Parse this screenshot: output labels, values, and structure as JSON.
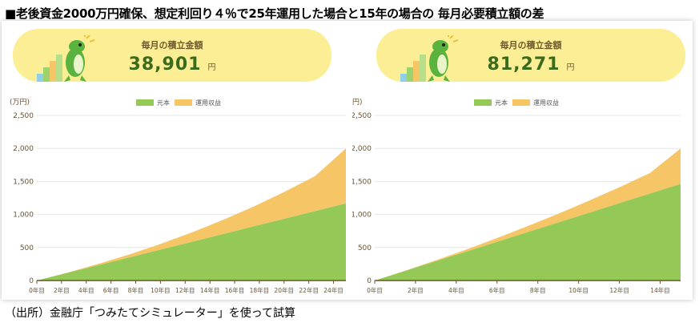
{
  "header": {
    "title": "■老後資金2000万円確保、想定利回り４％で25年運用した場合と15年の場合の 毎月必要積立額の差"
  },
  "footer": {
    "caption": "（出所）金融庁「つみたてシミュレーター」を使って試算"
  },
  "panels": [
    {
      "banner": {
        "label": "毎月の積立金額",
        "amount": "38,901",
        "unit": "円"
      }
    },
    {
      "banner": {
        "label": "毎月の積立金額",
        "amount": "81,271",
        "unit": "円"
      }
    }
  ],
  "colors": {
    "principal": "#94c857",
    "gain": "#f6c566",
    "banner": "#fcee95",
    "mascot": "#5ab33f"
  },
  "chart_data": [
    {
      "type": "area",
      "unit_label": "(万円)",
      "legend": [
        "元本",
        "運用収益"
      ],
      "x_ticks": [
        "0年目",
        "2年目",
        "4年目",
        "6年目",
        "8年目",
        "10年目",
        "12年目",
        "14年目",
        "16年目",
        "18年目",
        "20年目",
        "22年目",
        "24年目"
      ],
      "y_ticks": [
        "0",
        "500",
        "1,000",
        "1,500",
        "2,000",
        "2,500"
      ],
      "ylim": [
        0,
        2500
      ],
      "years": 25,
      "series": [
        {
          "name": "元本",
          "values": [
            0,
            117,
            233,
            350,
            467,
            583,
            700,
            817,
            933,
            1050,
            1167
          ]
        },
        {
          "name": "運用収益",
          "values": [
            0,
            5,
            20,
            46,
            86,
            142,
            213,
            300,
            406,
            531,
            833
          ]
        }
      ],
      "series_x_years": [
        0,
        2.5,
        5,
        7.5,
        10,
        12.5,
        15,
        17.5,
        20,
        22.5,
        25
      ]
    },
    {
      "type": "area",
      "unit_label": "円)",
      "legend": [
        "元本",
        "運用収益"
      ],
      "x_ticks": [
        "0年目",
        "2年目",
        "4年目",
        "6年目",
        "8年目",
        "10年目",
        "12年目",
        "14年目"
      ],
      "y_ticks": [
        "0",
        "500",
        "1,000",
        "1,500",
        "2,000",
        "2,500"
      ],
      "ylim": [
        0,
        2500
      ],
      "years": 15,
      "series": [
        {
          "name": "元本",
          "values": [
            0,
            146,
            293,
            439,
            585,
            732,
            878,
            1024,
            1171,
            1317,
            1463
          ]
        },
        {
          "name": "運用収益",
          "values": [
            0,
            4,
            14,
            32,
            58,
            91,
            133,
            183,
            242,
            310,
            537
          ]
        }
      ],
      "series_x_years": [
        0,
        1.5,
        3,
        4.5,
        6,
        7.5,
        9,
        10.5,
        12,
        13.5,
        15
      ]
    }
  ]
}
